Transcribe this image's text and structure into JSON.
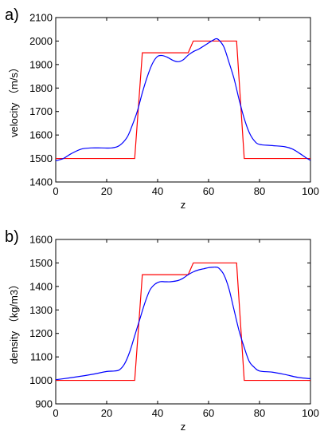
{
  "chart_data": [
    {
      "panel_label": "a)",
      "type": "line",
      "xlabel": "z",
      "ylabel": "velocity （m/s）",
      "xlim": [
        0,
        100
      ],
      "ylim": [
        1400,
        2100
      ],
      "xticks": [
        "0",
        "20",
        "40",
        "60",
        "80",
        "100"
      ],
      "yticks": [
        "1400",
        "1500",
        "1600",
        "1700",
        "1800",
        "1900",
        "2000",
        "2100"
      ],
      "grid": false,
      "series": [
        {
          "color": "#ff0000",
          "x": [
            0,
            31,
            34,
            52,
            54,
            71,
            74,
            100
          ],
          "y": [
            1500,
            1500,
            1950,
            1950,
            2000,
            2000,
            1500,
            1500
          ]
        },
        {
          "color": "#0000ff",
          "x": [
            0,
            3,
            6,
            10,
            14,
            18,
            22,
            25,
            28,
            30,
            32,
            34,
            36,
            38,
            40,
            42,
            44,
            46,
            48,
            50,
            52,
            54,
            56,
            58,
            60,
            62,
            63,
            64,
            66,
            68,
            70,
            72,
            74,
            76,
            78,
            80,
            85,
            90,
            93,
            96,
            98,
            100
          ],
          "y": [
            1490,
            1500,
            1520,
            1540,
            1545,
            1545,
            1545,
            1555,
            1590,
            1640,
            1700,
            1780,
            1850,
            1905,
            1935,
            1938,
            1930,
            1918,
            1912,
            1920,
            1940,
            1955,
            1965,
            1978,
            1992,
            2005,
            2010,
            2005,
            1975,
            1910,
            1840,
            1750,
            1670,
            1610,
            1575,
            1560,
            1555,
            1550,
            1540,
            1520,
            1505,
            1492
          ]
        }
      ]
    },
    {
      "panel_label": "b)",
      "type": "line",
      "xlabel": "z",
      "ylabel": "density （kg/m3）",
      "xlim": [
        0,
        100
      ],
      "ylim": [
        900,
        1600
      ],
      "xticks": [
        "0",
        "20",
        "40",
        "60",
        "80",
        "100"
      ],
      "yticks": [
        "900",
        "1000",
        "1100",
        "1200",
        "1300",
        "1400",
        "1500",
        "1600"
      ],
      "grid": false,
      "series": [
        {
          "color": "#ff0000",
          "x": [
            0,
            31,
            34,
            52,
            54,
            71,
            74,
            100
          ],
          "y": [
            1000,
            1000,
            1450,
            1450,
            1500,
            1500,
            1000,
            1000
          ]
        },
        {
          "color": "#0000ff",
          "x": [
            0,
            5,
            10,
            15,
            20,
            23,
            25,
            27,
            29,
            31,
            33,
            35,
            37,
            39,
            41,
            43,
            45,
            48,
            50,
            52,
            54,
            56,
            58,
            60,
            62,
            63,
            64,
            66,
            68,
            70,
            72,
            74,
            76,
            78,
            80,
            85,
            90,
            95,
            100
          ],
          "y": [
            1003,
            1010,
            1018,
            1027,
            1038,
            1040,
            1045,
            1070,
            1120,
            1190,
            1260,
            1330,
            1385,
            1410,
            1420,
            1420,
            1420,
            1425,
            1435,
            1450,
            1462,
            1470,
            1475,
            1480,
            1482,
            1482,
            1478,
            1450,
            1390,
            1300,
            1210,
            1140,
            1080,
            1055,
            1040,
            1035,
            1025,
            1013,
            1007
          ]
        }
      ]
    }
  ]
}
